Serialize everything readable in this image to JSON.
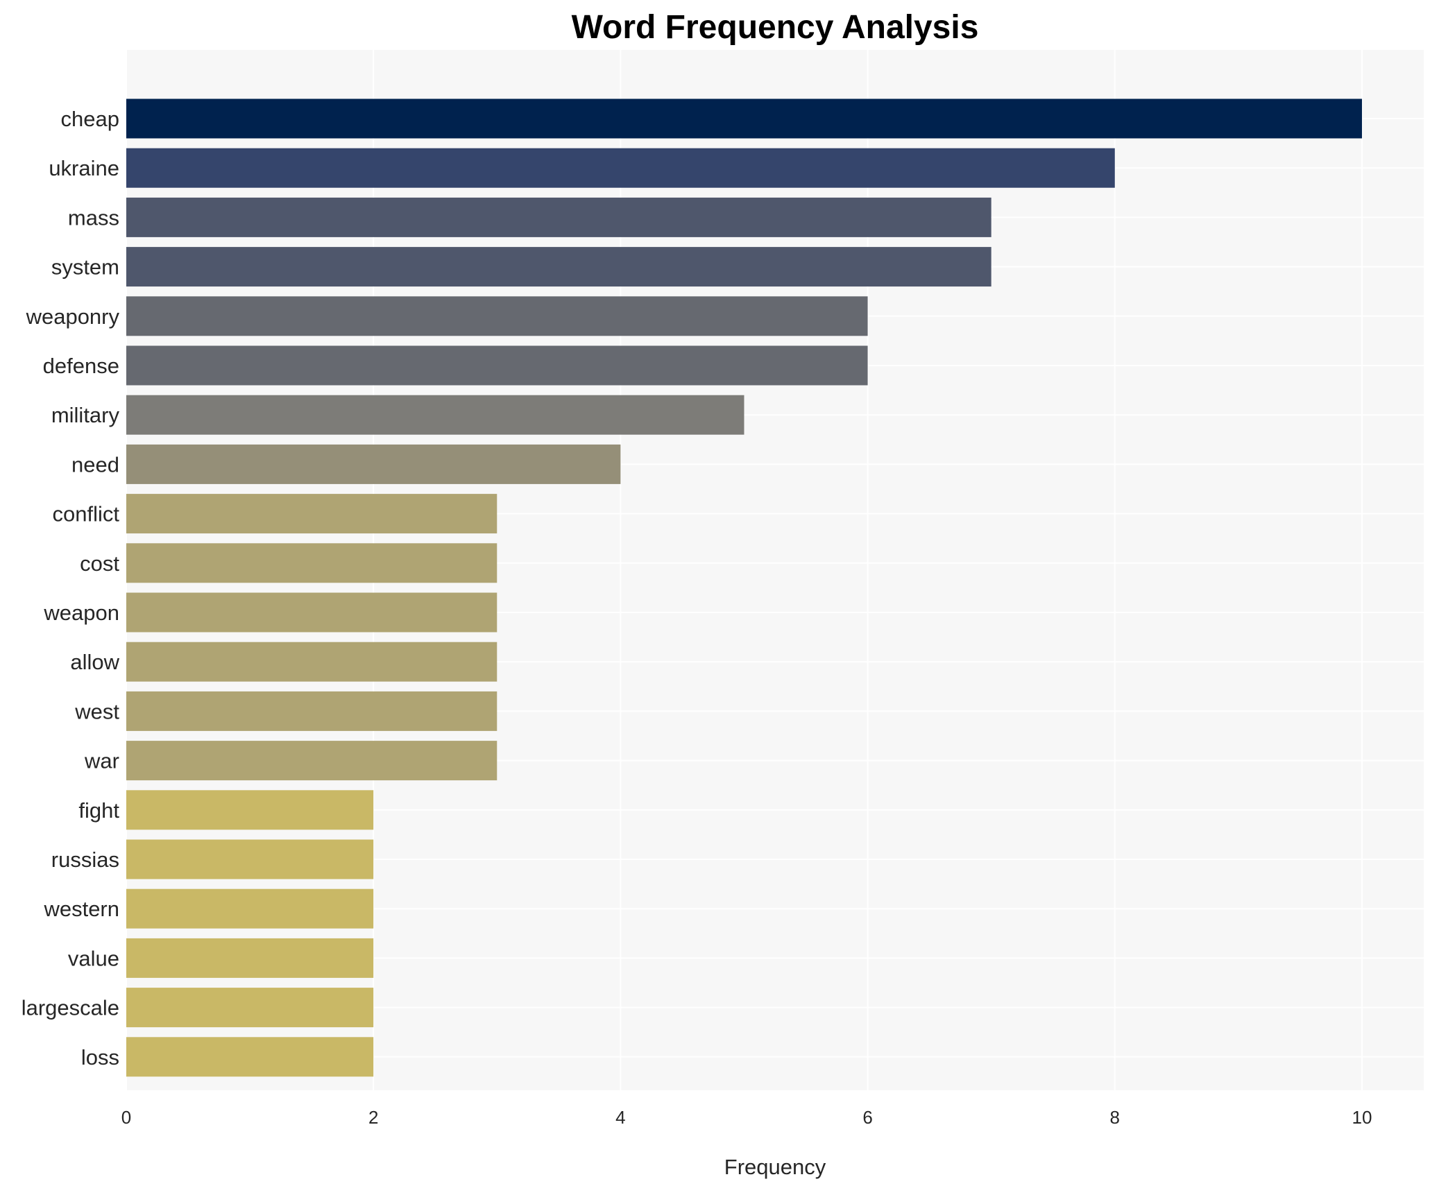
{
  "chart_data": {
    "type": "bar",
    "orientation": "horizontal",
    "title": "Word Frequency Analysis",
    "xlabel": "Frequency",
    "ylabel": "",
    "xlim": [
      0,
      10.5
    ],
    "xticks": [
      0,
      2,
      4,
      6,
      8,
      10
    ],
    "grid": true,
    "legend": "none",
    "categories": [
      "cheap",
      "ukraine",
      "mass",
      "system",
      "weaponry",
      "defense",
      "military",
      "need",
      "conflict",
      "cost",
      "weapon",
      "allow",
      "west",
      "war",
      "fight",
      "russias",
      "western",
      "value",
      "largescale",
      "loss"
    ],
    "values": [
      10,
      8,
      7,
      7,
      6,
      6,
      5,
      4,
      3,
      3,
      3,
      3,
      3,
      3,
      2,
      2,
      2,
      2,
      2,
      2
    ],
    "colors": [
      "#00224e",
      "#35456c",
      "#4f576c",
      "#4f576c",
      "#666970",
      "#666970",
      "#7d7c78",
      "#958f78",
      "#afa473",
      "#afa473",
      "#afa473",
      "#afa473",
      "#afa473",
      "#afa473",
      "#c9b866",
      "#c9b866",
      "#c9b866",
      "#c9b866",
      "#c9b866",
      "#c9b866"
    ],
    "plot_background": "#f7f7f7",
    "grid_color": "#ffffff"
  }
}
